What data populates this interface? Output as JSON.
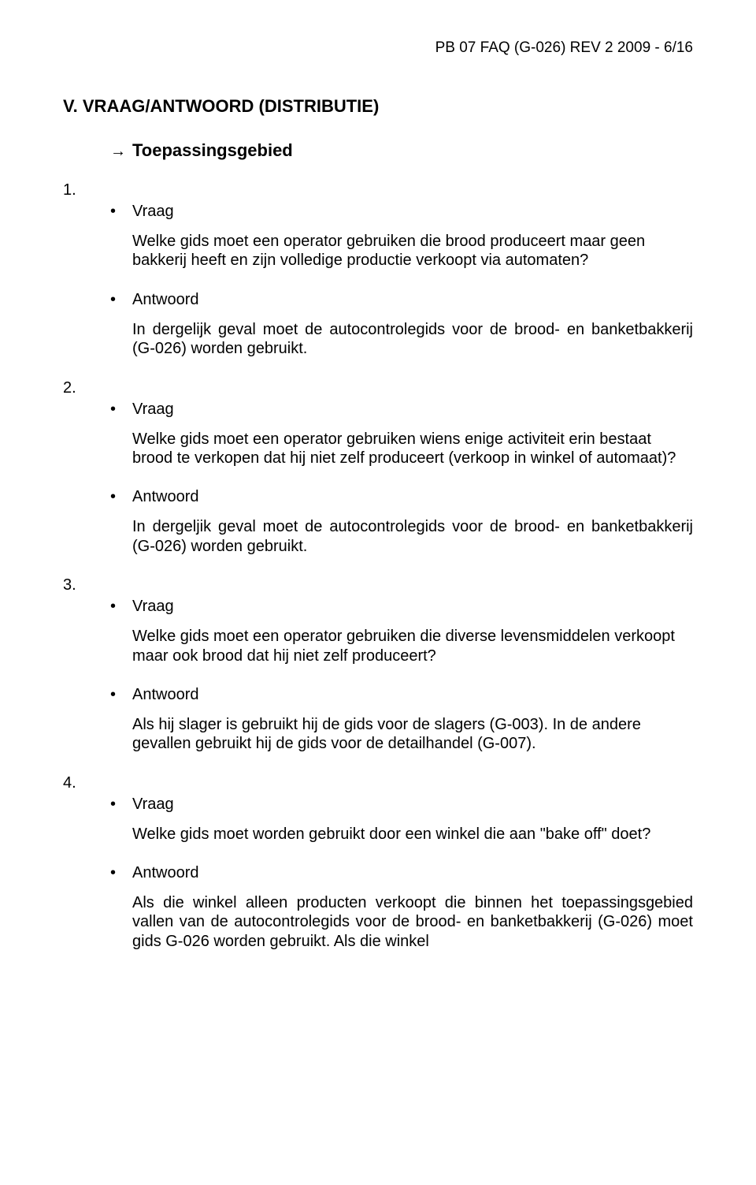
{
  "header": {
    "text": "PB 07 FAQ (G-026) REV 2 2009 - 6/16"
  },
  "section": {
    "heading": "V.   VRAAG/ANTWOORD (DISTRIBUTIE)",
    "arrow": "→",
    "subheading": "Toepassingsgebied"
  },
  "labels": {
    "vraag": "Vraag",
    "antwoord": "Antwoord",
    "bullet": "•"
  },
  "items": [
    {
      "num": "1.",
      "vraag": "Welke gids moet een operator gebruiken die brood produceert maar geen bakkerij heeft en zijn volledige productie verkoopt via automaten?",
      "antwoord": "In dergelijk geval moet de autocontrolegids voor de brood- en banketbakkerij (G-026) worden gebruikt.",
      "antwoord_justify": true
    },
    {
      "num": "2.",
      "vraag": "Welke gids moet een operator gebruiken wiens enige activiteit erin bestaat brood te verkopen dat hij niet zelf produceert (verkoop in winkel of automaat)?",
      "antwoord": "In dergeljik geval moet de autocontrolegids voor de brood- en banketbakkerij (G-026) worden gebruikt.",
      "antwoord_justify": true
    },
    {
      "num": "3.",
      "vraag": "Welke gids moet een operator gebruiken die diverse levensmiddelen verkoopt maar ook brood dat hij niet zelf produceert?",
      "antwoord": "Als hij slager is gebruikt hij de gids voor de slagers (G-003). In de andere gevallen gebruikt hij de gids voor de detailhandel (G-007).",
      "antwoord_justify": false
    },
    {
      "num": "4.",
      "vraag": "Welke gids moet worden gebruikt door een winkel die aan \"bake off\" doet?",
      "antwoord": "Als die winkel alleen producten verkoopt die binnen het toepassingsgebied vallen van de autocontrolegids voor de brood- en banketbakkerij (G-026) moet gids G-026 worden gebruikt. Als die winkel",
      "antwoord_justify": true
    }
  ]
}
